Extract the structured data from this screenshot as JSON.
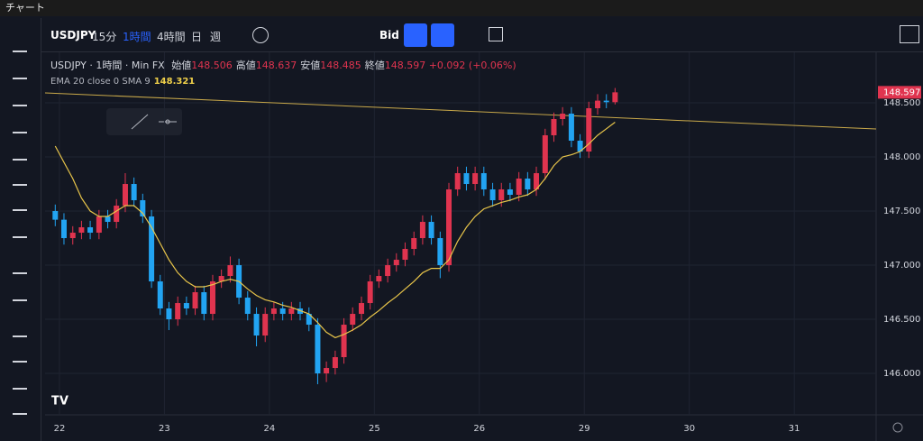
{
  "window": {
    "title": "チャート"
  },
  "toolbar": {
    "symbol": "USDJPY",
    "intervals": [
      "15分",
      "1時間",
      "4時間",
      "日",
      "週"
    ],
    "active_interval": 1,
    "price_type": "Bid"
  },
  "chart_data": {
    "type": "candlestick",
    "legend_title": "USDJPY · 1時間 · Min FX",
    "legend_labels": {
      "open": "始値",
      "high": "高値",
      "low": "安値",
      "close": "終値"
    },
    "change": "+0.092 (+0.06%)",
    "indicator_label": "EMA 20 close 0 SMA 9",
    "up_color": "#e0344f",
    "down_color": "#22a4f2",
    "x": [
      -0.04,
      0.043,
      0.127,
      0.21,
      0.293,
      0.377,
      0.46,
      0.543,
      0.627,
      0.71,
      0.793,
      0.877,
      0.96,
      1.043,
      1.127,
      1.21,
      1.293,
      1.377,
      1.46,
      1.543,
      1.627,
      1.71,
      1.793,
      1.877,
      1.96,
      2.043,
      2.127,
      2.21,
      2.293,
      2.377,
      2.46,
      2.543,
      2.627,
      2.71,
      2.793,
      2.877,
      2.96,
      3.043,
      3.127,
      3.21,
      3.293,
      3.377,
      3.46,
      3.543,
      3.627,
      3.71,
      3.793,
      3.877,
      3.96,
      4.043,
      4.127,
      4.21,
      4.293,
      4.377,
      4.46,
      4.543,
      4.627,
      4.71,
      4.793,
      4.877,
      4.96,
      5.043,
      5.127,
      5.21,
      5.293
    ],
    "open": [
      147.5,
      147.42,
      147.25,
      147.3,
      147.35,
      147.3,
      147.45,
      147.4,
      147.55,
      147.75,
      147.6,
      147.45,
      146.85,
      146.6,
      146.5,
      146.65,
      146.6,
      146.75,
      146.55,
      146.85,
      146.9,
      147.0,
      146.7,
      146.55,
      146.35,
      146.55,
      146.6,
      146.55,
      146.6,
      146.55,
      146.45,
      146.0,
      146.05,
      146.15,
      146.45,
      146.55,
      146.65,
      146.85,
      146.9,
      147.0,
      147.05,
      147.15,
      147.25,
      147.4,
      147.25,
      147.0,
      147.7,
      147.85,
      147.75,
      147.85,
      147.7,
      147.6,
      147.7,
      147.65,
      147.8,
      147.7,
      147.85,
      148.2,
      148.35,
      148.4,
      148.15,
      148.05,
      148.45,
      148.52,
      148.506
    ],
    "high": [
      147.56,
      147.48,
      147.36,
      147.41,
      147.41,
      147.51,
      147.51,
      147.61,
      147.85,
      147.81,
      147.66,
      147.51,
      146.91,
      146.66,
      146.71,
      146.71,
      146.81,
      146.81,
      146.91,
      146.96,
      147.08,
      147.06,
      146.76,
      146.61,
      146.61,
      146.66,
      146.66,
      146.66,
      146.66,
      146.61,
      146.51,
      146.11,
      146.21,
      146.51,
      146.61,
      146.71,
      146.91,
      146.96,
      147.06,
      147.11,
      147.21,
      147.31,
      147.46,
      147.46,
      147.31,
      147.76,
      147.91,
      147.91,
      147.91,
      147.91,
      147.76,
      147.76,
      147.76,
      147.86,
      147.86,
      147.91,
      148.26,
      148.41,
      148.46,
      148.46,
      148.21,
      148.51,
      148.58,
      148.58,
      148.637
    ],
    "low": [
      147.36,
      147.19,
      147.19,
      147.24,
      147.24,
      147.24,
      147.34,
      147.34,
      147.49,
      147.54,
      147.39,
      146.79,
      146.54,
      146.4,
      146.44,
      146.54,
      146.54,
      146.49,
      146.49,
      146.79,
      146.84,
      146.64,
      146.49,
      146.25,
      146.29,
      146.49,
      146.49,
      146.49,
      146.49,
      146.39,
      145.9,
      145.92,
      145.99,
      146.09,
      146.39,
      146.49,
      146.59,
      146.79,
      146.84,
      146.94,
      146.99,
      147.09,
      147.19,
      147.19,
      146.88,
      146.94,
      147.64,
      147.69,
      147.69,
      147.64,
      147.54,
      147.54,
      147.59,
      147.59,
      147.64,
      147.64,
      147.79,
      148.14,
      148.29,
      148.09,
      147.99,
      147.99,
      148.39,
      148.45,
      148.485
    ],
    "close": [
      147.42,
      147.25,
      147.3,
      147.35,
      147.3,
      147.45,
      147.4,
      147.55,
      147.75,
      147.6,
      147.45,
      146.85,
      146.6,
      146.5,
      146.65,
      146.6,
      146.75,
      146.55,
      146.85,
      146.9,
      147.0,
      146.7,
      146.55,
      146.35,
      146.55,
      146.6,
      146.55,
      146.6,
      146.55,
      146.45,
      146.0,
      146.05,
      146.15,
      146.45,
      146.55,
      146.65,
      146.85,
      146.9,
      147.0,
      147.05,
      147.15,
      147.25,
      147.4,
      147.25,
      147.0,
      147.7,
      147.85,
      147.75,
      147.85,
      147.7,
      147.6,
      147.7,
      147.65,
      147.8,
      147.7,
      147.85,
      148.2,
      148.35,
      148.4,
      148.15,
      148.05,
      148.45,
      148.52,
      148.506,
      148.597
    ],
    "ema": {
      "color": "#e8c54a",
      "values": [
        148.1,
        147.95,
        147.8,
        147.62,
        147.5,
        147.45,
        147.45,
        147.5,
        147.55,
        147.55,
        147.48,
        147.35,
        147.2,
        147.05,
        146.93,
        146.85,
        146.8,
        146.8,
        146.82,
        146.85,
        146.87,
        146.85,
        146.78,
        146.72,
        146.68,
        146.66,
        146.63,
        146.61,
        146.58,
        146.55,
        146.47,
        146.38,
        146.33,
        146.36,
        146.4,
        146.45,
        146.52,
        146.58,
        146.65,
        146.71,
        146.78,
        146.85,
        146.93,
        146.97,
        146.97,
        147.05,
        147.22,
        147.35,
        147.45,
        147.52,
        147.55,
        147.58,
        147.6,
        147.63,
        147.65,
        147.7,
        147.8,
        147.92,
        148.0,
        148.02,
        148.05,
        148.12,
        148.2,
        148.26,
        148.321
      ]
    },
    "trendline": {
      "color": "#c9a94a",
      "x": [
        -0.137,
        7.78
      ],
      "y": [
        148.592,
        148.258
      ]
    },
    "xlim": [
      -0.137,
      7.78
    ],
    "xticks": [
      {
        "value": 0,
        "label": "22"
      },
      {
        "value": 1,
        "label": "23"
      },
      {
        "value": 2,
        "label": "24"
      },
      {
        "value": 3,
        "label": "25"
      },
      {
        "value": 4,
        "label": "26"
      },
      {
        "value": 5,
        "label": "29"
      },
      {
        "value": 6,
        "label": "30"
      },
      {
        "value": 7,
        "label": "31"
      }
    ],
    "ylim": [
      145.617,
      148.975
    ],
    "yticks": [
      {
        "value": 146,
        "label": "146.000"
      },
      {
        "value": 146.5,
        "label": "146.500"
      },
      {
        "value": 147,
        "label": "147.000"
      },
      {
        "value": 147.5,
        "label": "147.500"
      },
      {
        "value": 148,
        "label": "148.000"
      },
      {
        "value": 148.5,
        "label": "148.500"
      }
    ],
    "grid": true
  }
}
